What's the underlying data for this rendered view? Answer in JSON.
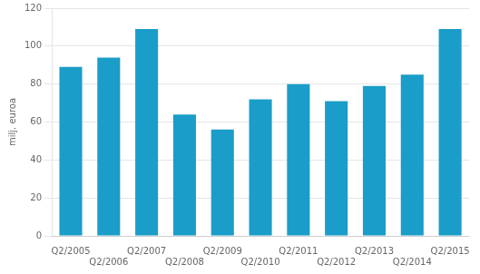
{
  "chart_data": {
    "type": "bar",
    "categories": [
      "Q2/2005",
      "Q2/2006",
      "Q2/2007",
      "Q2/2008",
      "Q2/2009",
      "Q2/2010",
      "Q2/2011",
      "Q2/2012",
      "Q2/2013",
      "Q2/2014",
      "Q2/2015"
    ],
    "values": [
      89,
      94,
      109,
      64,
      56,
      72,
      80,
      71,
      79,
      85,
      109
    ],
    "color": "#1a9dc8",
    "ylabel": "milj. euroa",
    "ylim": [
      0,
      120
    ],
    "yticks": [
      0,
      20,
      40,
      60,
      80,
      100,
      120
    ],
    "grid": true
  }
}
